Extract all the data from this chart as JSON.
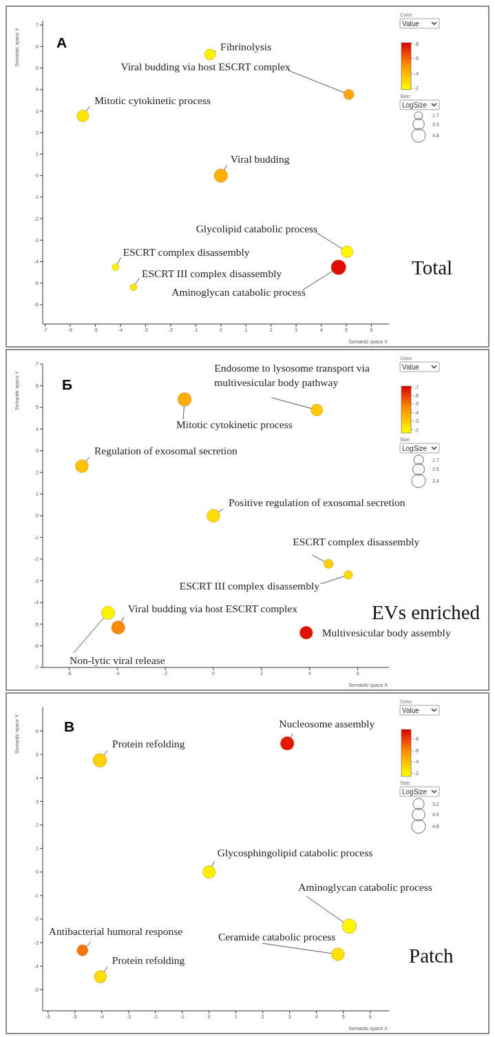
{
  "chart_data": [
    {
      "type": "bubble",
      "title": "A",
      "xlabel": "Semantic space X",
      "ylabel": "Semantic space Y",
      "xlim": [
        -7.1,
        6.7
      ],
      "xticks": [
        -7,
        -6,
        -5,
        -4,
        -3,
        -2,
        -1,
        0,
        1,
        2,
        3,
        4,
        5,
        6
      ],
      "ylim": [
        -6.9,
        7.2
      ],
      "yticks": [
        -6,
        -5,
        -4,
        -3,
        -2,
        -1,
        0,
        1,
        2,
        3,
        4,
        5,
        6,
        7
      ],
      "clim": [
        -1.8,
        -8.1
      ],
      "cticks": [
        -2,
        -4,
        -6,
        -8
      ],
      "size_legend": [
        1.7,
        3.3,
        4.8
      ],
      "annotations": [
        "Color:",
        "Value",
        "Size:",
        "LogSize",
        "Total"
      ],
      "series": [
        {
          "name": "Fibrinolysis",
          "x": [
            -0.43
          ],
          "values": [
            5.63
          ],
          "sizes": [
            3.1
          ],
          "cvalues": [
            -2.2
          ]
        },
        {
          "name": "Viral budding via host ESCRT complex",
          "x": [
            5.1
          ],
          "values": [
            3.77
          ],
          "sizes": [
            2.6
          ],
          "cvalues": [
            -4.6
          ]
        },
        {
          "name": "Mitotic cytokinetic process",
          "x": [
            -5.5
          ],
          "values": [
            2.77
          ],
          "sizes": [
            3.6
          ],
          "cvalues": [
            -2.6
          ]
        },
        {
          "name": "Viral budding",
          "x": [
            0
          ],
          "values": [
            0
          ],
          "sizes": [
            4.6
          ],
          "cvalues": [
            -4.2
          ]
        },
        {
          "name": "Glycolipid catabolic process",
          "x": [
            5.03
          ],
          "values": [
            -3.54
          ],
          "sizes": [
            3.6
          ],
          "cvalues": [
            -2.0
          ]
        },
        {
          "name": "ESCRT complex disassembly",
          "x": [
            -4.2
          ],
          "values": [
            -4.26
          ],
          "sizes": [
            1.2
          ],
          "cvalues": [
            -2.2
          ]
        },
        {
          "name": "ESCRT III complex disassembly",
          "x": [
            -3.48
          ],
          "values": [
            -5.19
          ],
          "sizes": [
            1.2
          ],
          "cvalues": [
            -2.4
          ]
        },
        {
          "name": "Aminoglycan catabolic process",
          "x": [
            4.69
          ],
          "values": [
            -4.26
          ],
          "sizes": [
            5.5
          ],
          "cvalues": [
            -7.8
          ]
        }
      ]
    },
    {
      "type": "bubble",
      "title": "Б",
      "xlabel": "Semantic space X",
      "ylabel": "Semantic space Y",
      "xlim": [
        -7.1,
        7.3
      ],
      "xticks": [
        -6,
        -4,
        -2,
        0,
        2,
        4,
        6
      ],
      "ylim": [
        -7,
        7
      ],
      "yticks": [
        -7,
        -6,
        -5,
        -4,
        -3,
        -2,
        -1,
        0,
        1,
        2,
        3,
        4,
        5,
        6,
        7
      ],
      "clim": [
        -1.6,
        -7.1
      ],
      "cticks": [
        -2,
        -3,
        -4,
        -5,
        -6,
        -7
      ],
      "size_legend": [
        1.7,
        2.5,
        3.4
      ],
      "annotations": [
        "Color:",
        "Value",
        "Size:",
        "LogSize",
        "EVs enriched"
      ],
      "series": [
        {
          "name": "Mitotic cytokinetic process",
          "x": [
            -1.2
          ],
          "values": [
            5.37
          ],
          "sizes": [
            3.3
          ],
          "cvalues": [
            -3.8
          ]
        },
        {
          "name": "Endosome to lysosome transport via multivesicular body pathway",
          "x": [
            4.3
          ],
          "values": [
            4.88
          ],
          "sizes": [
            2.5
          ],
          "cvalues": [
            -3.0
          ]
        },
        {
          "name": "Regulation of exosomal secretion",
          "x": [
            -5.47
          ],
          "values": [
            2.29
          ],
          "sizes": [
            3.0
          ],
          "cvalues": [
            -3.2
          ]
        },
        {
          "name": "Positive regulation of exosomal secretion",
          "x": [
            0
          ],
          "values": [
            0
          ],
          "sizes": [
            3.0
          ],
          "cvalues": [
            -2.5
          ]
        },
        {
          "name": "ESCRT complex disassembly",
          "x": [
            4.79
          ],
          "values": [
            -2.22
          ],
          "sizes": [
            1.5
          ],
          "cvalues": [
            -2.8
          ]
        },
        {
          "name": "ESCRT III complex disassembly",
          "x": [
            5.61
          ],
          "values": [
            -2.73
          ],
          "sizes": [
            1.35
          ],
          "cvalues": [
            -2.6
          ]
        },
        {
          "name": "Non-lytic viral release",
          "x": [
            -4.38
          ],
          "values": [
            -4.48
          ],
          "sizes": [
            3.2
          ],
          "cvalues": [
            -1.9
          ]
        },
        {
          "name": "Viral budding via host ESCRT complex",
          "x": [
            -3.96
          ],
          "values": [
            -5.16
          ],
          "sizes": [
            3.2
          ],
          "cvalues": [
            -4.6
          ]
        },
        {
          "name": "Multivesicular body assembly",
          "x": [
            3.86
          ],
          "values": [
            -5.4
          ],
          "sizes": [
            3.0
          ],
          "cvalues": [
            -6.8
          ]
        }
      ]
    },
    {
      "type": "bubble",
      "title": "B",
      "xlabel": "Semantic space X",
      "ylabel": "Semantic space Y",
      "xlim": [
        -6.2,
        6.7
      ],
      "xticks": [
        -6,
        -5,
        -4,
        -3,
        -2,
        -1,
        0,
        1,
        2,
        3,
        4,
        5,
        6
      ],
      "ylim": [
        -5.9,
        7
      ],
      "yticks": [
        -5,
        -4,
        -3,
        -2,
        -1,
        0,
        1,
        2,
        3,
        4,
        5,
        6
      ],
      "clim": [
        -1.4,
        -9.7
      ],
      "cticks": [
        -2,
        -4,
        -6,
        -8
      ],
      "size_legend": [
        3.2,
        {
          "value": 4,
          "label": "4.0"
        },
        4.8
      ],
      "annotations": [
        "Color:",
        "Value",
        "Size:",
        "LogSize",
        "Patch"
      ],
      "series": [
        {
          "name": "Nucleosome assembly",
          "x": [
            2.91
          ],
          "values": [
            5.47
          ],
          "sizes": [
            4.7
          ],
          "cvalues": [
            -9.0
          ]
        },
        {
          "name": "Protein refolding",
          "x": [
            -4.07
          ],
          "values": [
            4.75
          ],
          "sizes": [
            4.7
          ],
          "cvalues": [
            -3.2
          ]
        },
        {
          "name": "Glycosphingolipid catabolic process",
          "x": [
            0
          ],
          "values": [
            0
          ],
          "sizes": [
            4.2
          ],
          "cvalues": [
            -2.2
          ]
        },
        {
          "name": "Aminoglycan catabolic process",
          "x": [
            5.22
          ],
          "values": [
            -2.3
          ],
          "sizes": [
            5.3
          ],
          "cvalues": [
            -1.8
          ]
        },
        {
          "name": "Antibacterial humoral response",
          "x": [
            -4.72
          ],
          "values": [
            -3.33
          ],
          "sizes": [
            3.1
          ],
          "cvalues": [
            -6.5
          ]
        },
        {
          "name": "Ceramide catabolic process",
          "x": [
            4.8
          ],
          "values": [
            -3.5
          ],
          "sizes": [
            4.2
          ],
          "cvalues": [
            -2.6
          ]
        },
        {
          "name": "Protein refolding",
          "x": [
            -4.05
          ],
          "values": [
            -4.45
          ],
          "sizes": [
            3.9
          ],
          "cvalues": [
            -2.8
          ]
        }
      ]
    }
  ]
}
